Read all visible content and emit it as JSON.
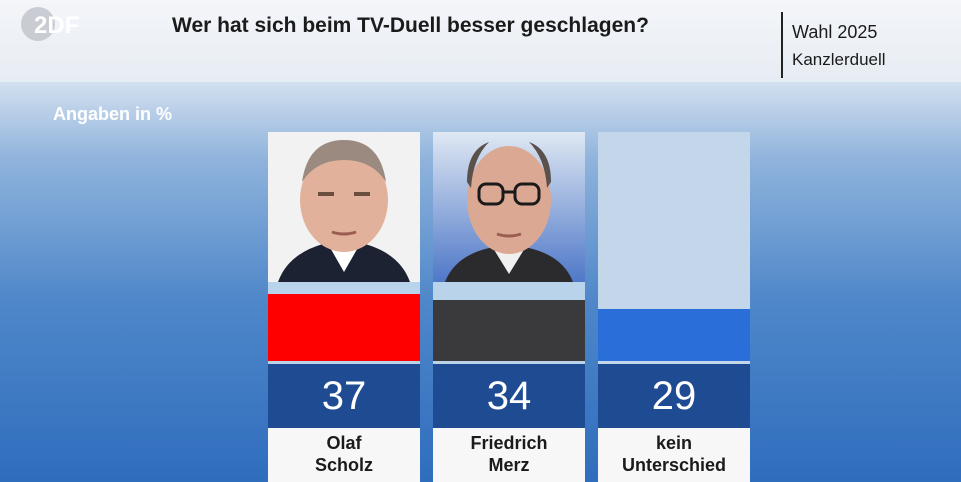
{
  "header": {
    "logo_text": "2DF",
    "title": "Wer hat sich beim TV-Duell besser geschlagen?",
    "tag_line1": "Wahl 2025",
    "tag_line2": "Kanzlerduell"
  },
  "colors": {
    "Olaf Scholz": "#ff0000",
    "Friedrich Merz": "#3a3a3c",
    "kein Unterschied": "#2a6fd9"
  },
  "chart_data": {
    "type": "bar",
    "title": "Wer hat sich beim TV-Duell besser geschlagen?",
    "ylabel": "Angaben in %",
    "categories": [
      "Olaf Scholz",
      "Friedrich Merz",
      "kein Unterschied"
    ],
    "category_lines": [
      [
        "Olaf",
        "Scholz"
      ],
      [
        "Friedrich",
        "Merz"
      ],
      [
        "kein",
        "Unterschied"
      ]
    ],
    "values": [
      37,
      34,
      29
    ],
    "value_labels": [
      "37",
      "34",
      "29"
    ],
    "ylim": [
      0,
      100
    ],
    "legend": "none",
    "grid": false
  }
}
